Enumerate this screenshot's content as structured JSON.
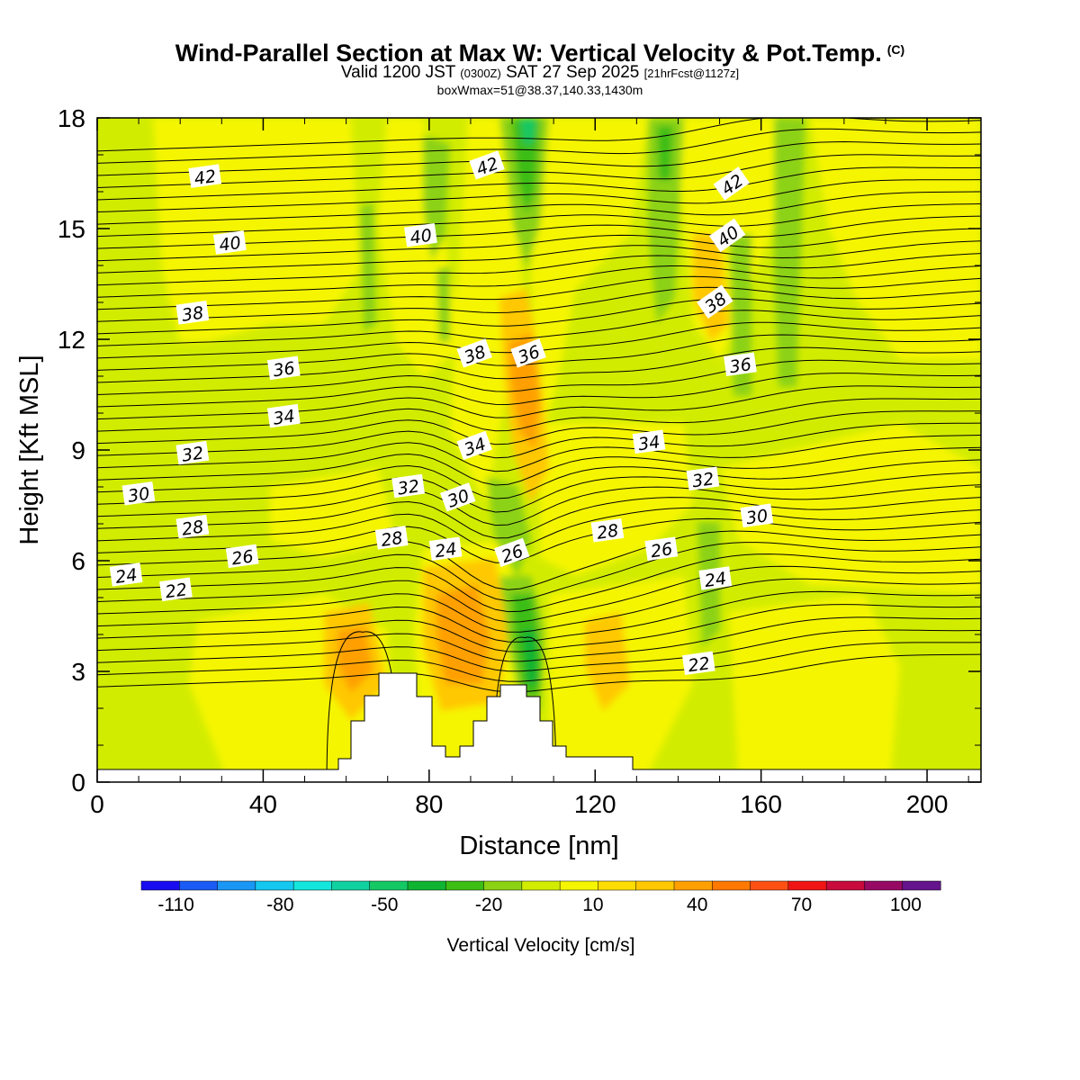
{
  "header": {
    "title": "Wind-Parallel Section at Max W: Vertical Velocity & Pot.Temp.",
    "copyright": "(C)",
    "valid_prefix": "Valid 1200 JST",
    "valid_utc": "(0300Z)",
    "valid_date": "SAT 27 Sep 2025",
    "forecast_info": "[21hrFcst@1127z]",
    "box_info": "boxWmax=51@38.37,140.33,1430m"
  },
  "chart_data": {
    "type": "heatmap",
    "title": "Wind-Parallel Section at Max W: Vertical Velocity & Pot.Temp.",
    "xlabel": "Distance [nm]",
    "ylabel": "Height [Kft MSL]",
    "xlim": [
      0,
      213
    ],
    "ylim": [
      0,
      18
    ],
    "x_ticks": [
      "0",
      "40",
      "80",
      "120",
      "160",
      "200"
    ],
    "y_ticks": [
      "0",
      "3",
      "6",
      "9",
      "12",
      "15",
      "18"
    ],
    "colorbar": {
      "label": "Vertical Velocity [cm/s]",
      "tick_labels": [
        "-110",
        "-80",
        "-50",
        "-20",
        "10",
        "40",
        "70",
        "100"
      ],
      "range": [
        -120,
        110
      ],
      "colors": [
        "#1a0cf0",
        "#1a5af5",
        "#1a96f5",
        "#14c8f0",
        "#14e6dc",
        "#10d2a0",
        "#14c864",
        "#0fb432",
        "#3cbe14",
        "#8cd214",
        "#d2ec00",
        "#f5f500",
        "#ffdc00",
        "#ffc800",
        "#ffa000",
        "#ff7800",
        "#ff5014",
        "#f01414",
        "#c80a3c",
        "#960a64",
        "#64148c"
      ]
    },
    "series": [
      {
        "name": "Potential Temperature contours",
        "label_values": [
          "42",
          "40",
          "38",
          "36",
          "34",
          "32",
          "30",
          "28",
          "26",
          "24",
          "22"
        ]
      }
    ],
    "terrain_peaks_kft": [
      {
        "distance_nm": 73,
        "height_kft": 2.9
      },
      {
        "distance_nm": 100,
        "height_kft": 2.6
      }
    ],
    "contour_labels": [
      {
        "text": "42",
        "x": 26,
        "y": 16.4
      },
      {
        "text": "42",
        "x": 94,
        "y": 16.7
      },
      {
        "text": "42",
        "x": 153,
        "y": 16.2
      },
      {
        "text": "40",
        "x": 32,
        "y": 14.6
      },
      {
        "text": "40",
        "x": 78,
        "y": 14.8
      },
      {
        "text": "40",
        "x": 152,
        "y": 14.8
      },
      {
        "text": "38",
        "x": 23,
        "y": 12.7
      },
      {
        "text": "38",
        "x": 91,
        "y": 11.6
      },
      {
        "text": "38",
        "x": 149,
        "y": 13.0
      },
      {
        "text": "36",
        "x": 45,
        "y": 11.2
      },
      {
        "text": "36",
        "x": 104,
        "y": 11.6
      },
      {
        "text": "36",
        "x": 155,
        "y": 11.3
      },
      {
        "text": "34",
        "x": 45,
        "y": 9.9
      },
      {
        "text": "34",
        "x": 91,
        "y": 9.1
      },
      {
        "text": "34",
        "x": 133,
        "y": 9.2
      },
      {
        "text": "32",
        "x": 23,
        "y": 8.9
      },
      {
        "text": "32",
        "x": 75,
        "y": 8.0
      },
      {
        "text": "32",
        "x": 146,
        "y": 8.2
      },
      {
        "text": "30",
        "x": 10,
        "y": 7.8
      },
      {
        "text": "30",
        "x": 87,
        "y": 7.7
      },
      {
        "text": "30",
        "x": 159,
        "y": 7.2
      },
      {
        "text": "28",
        "x": 23,
        "y": 6.9
      },
      {
        "text": "28",
        "x": 71,
        "y": 6.6
      },
      {
        "text": "28",
        "x": 123,
        "y": 6.8
      },
      {
        "text": "26",
        "x": 35,
        "y": 6.1
      },
      {
        "text": "26",
        "x": 100,
        "y": 6.2
      },
      {
        "text": "26",
        "x": 136,
        "y": 6.3
      },
      {
        "text": "24",
        "x": 7,
        "y": 5.6
      },
      {
        "text": "24",
        "x": 84,
        "y": 6.3
      },
      {
        "text": "24",
        "x": 149,
        "y": 5.5
      },
      {
        "text": "22",
        "x": 19,
        "y": 5.2
      },
      {
        "text": "22",
        "x": 145,
        "y": 3.2
      }
    ]
  }
}
